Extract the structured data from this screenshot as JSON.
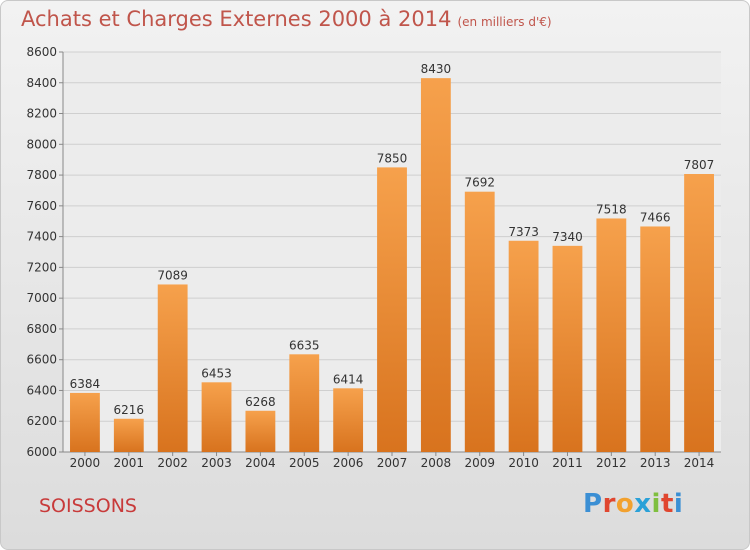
{
  "header": {
    "title": "Achats et Charges Externes 2000 à 2014",
    "subtitle": "(en milliers d'€)"
  },
  "footer": {
    "city": "SOISSONS",
    "logo_text": "Proxiti"
  },
  "colors": {
    "bar_top": "#f6a14c",
    "bar_bottom": "#d8731e",
    "title": "#c0554b",
    "city": "#c83a3a",
    "logo_letters": [
      "#3b8fd4",
      "#e0462f",
      "#f2a12e",
      "#2aa1d8",
      "#7fbf3f",
      "#e0462f",
      "#3b8fd4"
    ]
  },
  "chart_data": {
    "type": "bar",
    "title": "Achats et Charges Externes 2000 à 2014",
    "subtitle": "(en milliers d'€)",
    "categories": [
      "2000",
      "2001",
      "2002",
      "2003",
      "2004",
      "2005",
      "2006",
      "2007",
      "2008",
      "2009",
      "2010",
      "2011",
      "2012",
      "2013",
      "2014"
    ],
    "values": [
      6384,
      6216,
      7089,
      6453,
      6268,
      6635,
      6414,
      7850,
      8430,
      7692,
      7373,
      7340,
      7518,
      7466,
      7807
    ],
    "ylim": [
      6000,
      8600
    ],
    "yticks": [
      6000,
      6200,
      6400,
      6600,
      6800,
      7000,
      7200,
      7400,
      7600,
      7800,
      8000,
      8200,
      8400,
      8600
    ],
    "grid": true,
    "xlabel": "",
    "ylabel": ""
  }
}
